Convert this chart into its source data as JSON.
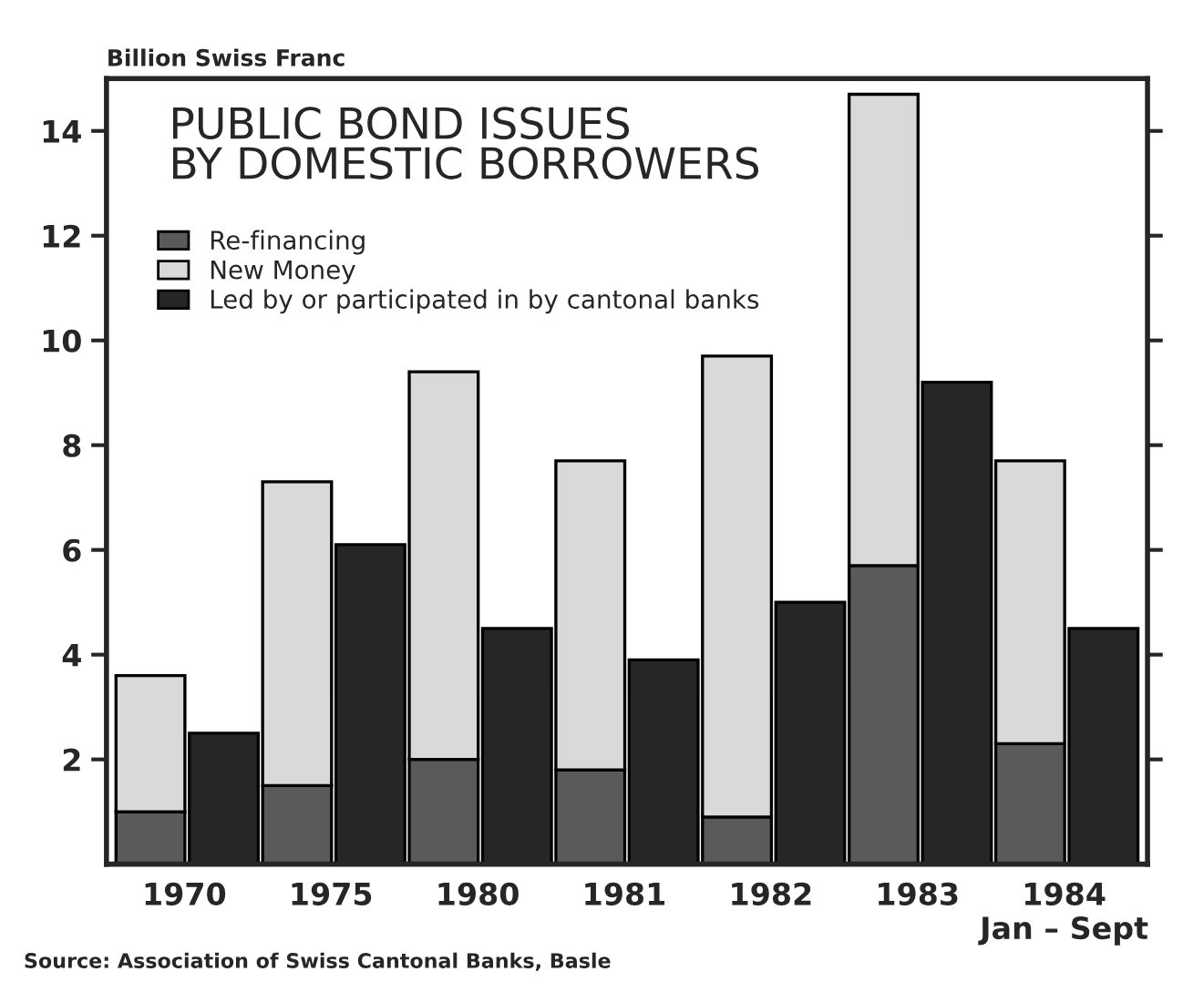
{
  "chart_data": {
    "type": "bar",
    "title": "PUBLIC BOND ISSUES\nBY DOMESTIC BORROWERS",
    "ylabel": "Billion Swiss Franc",
    "categories": [
      "1970",
      null,
      "1975",
      null,
      "1980",
      null,
      "1981",
      null,
      "1982",
      null,
      "1983",
      null,
      "1984\nJan – Sept",
      null
    ],
    "series": [
      {
        "name": "Re-financing",
        "color": "#5a5a5a",
        "values": [
          1.0,
          null,
          1.5,
          null,
          2.0,
          null,
          1.8,
          null,
          0.9,
          null,
          5.7,
          null,
          2.3,
          null
        ]
      },
      {
        "name": "New Money",
        "color": "#d9d9d9",
        "values": [
          2.6,
          null,
          5.8,
          null,
          7.4,
          null,
          5.9,
          null,
          8.8,
          null,
          9.0,
          null,
          5.4,
          null
        ]
      },
      {
        "name": "Led by or participated in by cantonal banks",
        "color": "#262626",
        "values": [
          null,
          2.5,
          null,
          6.1,
          null,
          4.5,
          null,
          3.9,
          null,
          5.0,
          null,
          9.2,
          null,
          4.5
        ]
      }
    ],
    "stacked": true,
    "ylim": [
      0,
      15
    ],
    "yticks": [
      2,
      4,
      6,
      8,
      10,
      12,
      14
    ],
    "legend": "top left",
    "annotations": [
      "Source: Association of Swiss Cantonal Banks, Basle"
    ]
  }
}
